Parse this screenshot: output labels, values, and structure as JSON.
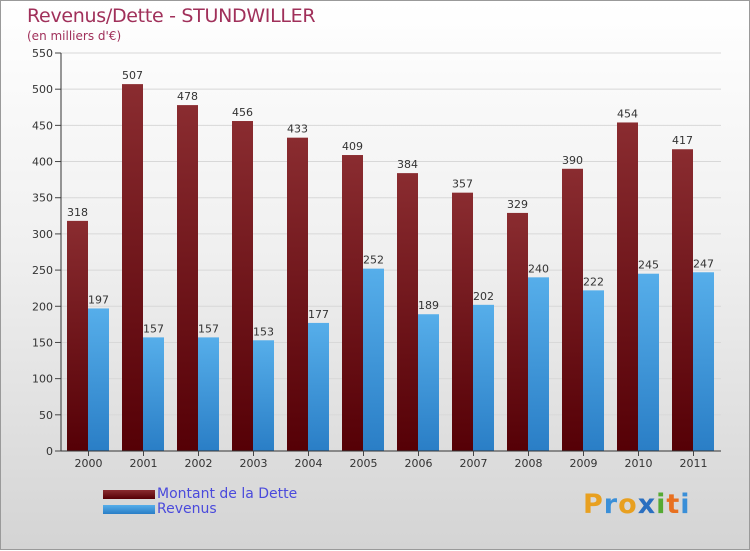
{
  "chart_data": {
    "type": "bar",
    "title": "Revenus/Dette - STUNDWILLER",
    "subtitle": "(en milliers d'€)",
    "categories": [
      "2000",
      "2001",
      "2002",
      "2003",
      "2004",
      "2005",
      "2006",
      "2007",
      "2008",
      "2009",
      "2010",
      "2011"
    ],
    "series": [
      {
        "name": "Montant de la Dette",
        "color": "#7a1a1f",
        "values": [
          318,
          507,
          478,
          456,
          433,
          409,
          384,
          357,
          329,
          390,
          454,
          417
        ]
      },
      {
        "name": "Revenus",
        "color": "#3f9be0",
        "values": [
          197,
          157,
          157,
          153,
          177,
          252,
          189,
          202,
          240,
          222,
          245,
          247
        ]
      }
    ],
    "ylim": [
      0,
      550
    ],
    "yticks": [
      0,
      50,
      100,
      150,
      200,
      250,
      300,
      350,
      400,
      450,
      500,
      550
    ],
    "grid": true,
    "legend": "bottom-left"
  },
  "brand": {
    "letters": [
      "P",
      "r",
      "o",
      "x",
      "i",
      "t",
      "i"
    ],
    "colors": [
      "#e8a020",
      "#3a8fd8",
      "#e8a020",
      "#2a6fc0",
      "#55aa33",
      "#e87020",
      "#3a8fd8"
    ]
  }
}
